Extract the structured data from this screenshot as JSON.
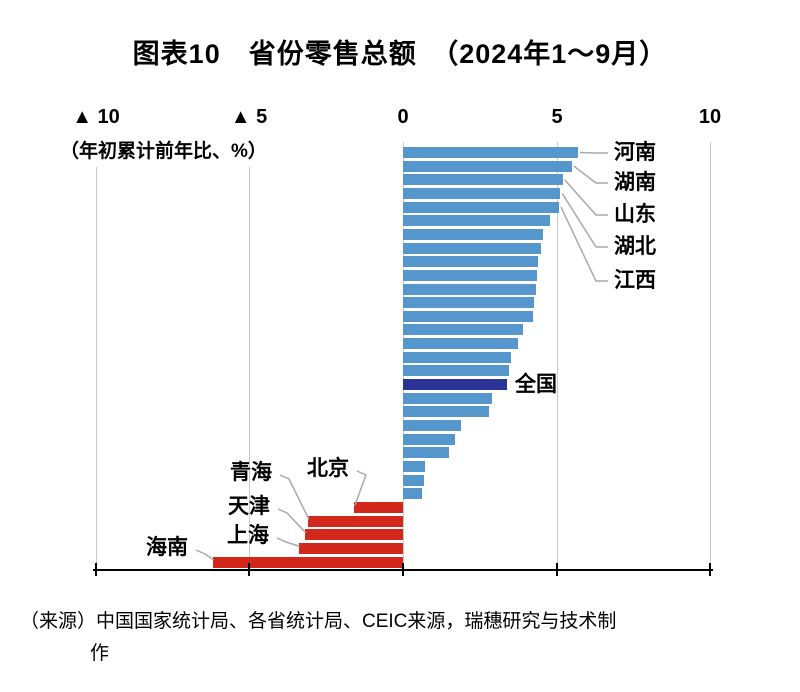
{
  "title": "图表10　省份零售总额　（2024年1～9月）",
  "axis_note": "（年初累计前年比、%）",
  "x_axis": {
    "tick_labels": [
      "▲ 10",
      "▲ 5",
      "0",
      "5",
      "10"
    ],
    "tick_values": [
      -10,
      -5,
      0,
      5,
      10
    ]
  },
  "colors": {
    "positive_bar": "#5596cd",
    "national_bar": "#2b3396",
    "negative_bar": "#d2281c",
    "gridline": "#c9c9c9",
    "leader_line": "#a9a9a9",
    "axis_line": "#000000"
  },
  "chart_data": {
    "type": "bar",
    "orientation": "horizontal",
    "title": "图表10　省份零售总额（2024年1～9月）",
    "xlabel": "年初累计前年比、%",
    "xlim": [
      -10,
      10
    ],
    "xticks": [
      -10,
      -5,
      0,
      5,
      10
    ],
    "grid": "vertical-only",
    "bars": [
      {
        "label": "河南",
        "value": 5.7,
        "group": "province"
      },
      {
        "label": "湖南",
        "value": 5.5,
        "group": "province"
      },
      {
        "label": "山东",
        "value": 5.2,
        "group": "province"
      },
      {
        "label": "湖北",
        "value": 5.12,
        "group": "province"
      },
      {
        "label": "江西",
        "value": 5.08,
        "group": "province"
      },
      {
        "label": "",
        "value": 4.8,
        "group": "province"
      },
      {
        "label": "",
        "value": 4.55,
        "group": "province"
      },
      {
        "label": "",
        "value": 4.5,
        "group": "province"
      },
      {
        "label": "",
        "value": 4.4,
        "group": "province"
      },
      {
        "label": "",
        "value": 4.35,
        "group": "province"
      },
      {
        "label": "",
        "value": 4.32,
        "group": "province"
      },
      {
        "label": "",
        "value": 4.28,
        "group": "province"
      },
      {
        "label": "",
        "value": 4.22,
        "group": "province"
      },
      {
        "label": "",
        "value": 3.9,
        "group": "province"
      },
      {
        "label": "",
        "value": 3.75,
        "group": "province"
      },
      {
        "label": "",
        "value": 3.52,
        "group": "province"
      },
      {
        "label": "",
        "value": 3.45,
        "group": "province"
      },
      {
        "label": "全国",
        "value": 3.4,
        "group": "national"
      },
      {
        "label": "",
        "value": 2.9,
        "group": "province"
      },
      {
        "label": "",
        "value": 2.8,
        "group": "province"
      },
      {
        "label": "",
        "value": 1.9,
        "group": "province"
      },
      {
        "label": "",
        "value": 1.7,
        "group": "province"
      },
      {
        "label": "",
        "value": 1.5,
        "group": "province"
      },
      {
        "label": "",
        "value": 0.72,
        "group": "province"
      },
      {
        "label": "",
        "value": 0.7,
        "group": "province"
      },
      {
        "label": "",
        "value": 0.62,
        "group": "province"
      },
      {
        "label": "北京",
        "value": -1.6,
        "group": "province"
      },
      {
        "label": "青海",
        "value": -3.1,
        "group": "province"
      },
      {
        "label": "天津",
        "value": -3.2,
        "group": "province"
      },
      {
        "label": "上海",
        "value": -3.4,
        "group": "province"
      },
      {
        "label": "海南",
        "value": -6.2,
        "group": "province"
      }
    ]
  },
  "source": {
    "line1": "（来源）中国国家统计局、各省统计局、CEIC来源，瑞穗研究与技术制",
    "line2": "作"
  }
}
